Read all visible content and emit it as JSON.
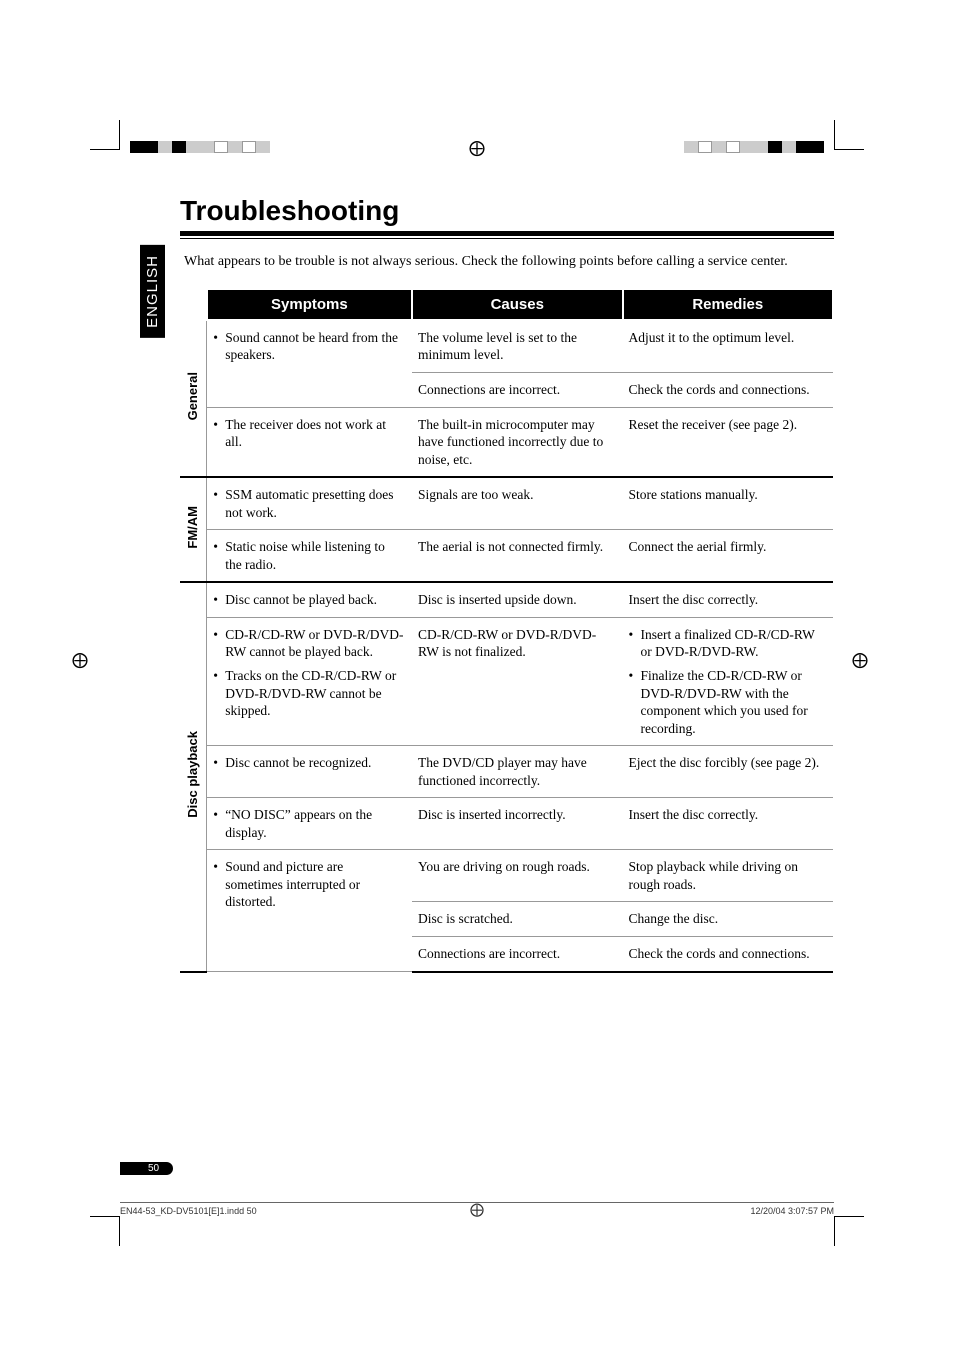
{
  "language_tab": "ENGLISH",
  "title": "Troubleshooting",
  "intro": "What appears to be trouble is not always serious. Check the following points before calling a service center.",
  "headers": {
    "symptoms": "Symptoms",
    "causes": "Causes",
    "remedies": "Remedies"
  },
  "groups": [
    {
      "name": "General",
      "rows": [
        {
          "symptom_bullets": [
            "Sound cannot be heard from the speakers."
          ],
          "cause": "The volume level is set to the minimum level.",
          "remedy": "Adjust it to the optimum level.",
          "sym_rowspan": 2
        },
        {
          "cause": "Connections are incorrect.",
          "remedy": "Check the cords and connections."
        },
        {
          "symptom_bullets": [
            "The receiver does not work at all."
          ],
          "cause": "The built-in microcomputer may have functioned incorrectly due to noise, etc.",
          "remedy": "Reset the receiver (see page 2)."
        }
      ]
    },
    {
      "name": "FM/AM",
      "rows": [
        {
          "symptom_bullets": [
            "SSM automatic presetting does not work."
          ],
          "cause": "Signals are too weak.",
          "remedy": "Store stations manually."
        },
        {
          "symptom_bullets": [
            "Static noise while listening to the radio."
          ],
          "cause": "The aerial is not connected firmly.",
          "remedy": "Connect the aerial firmly."
        }
      ]
    },
    {
      "name": "Disc playback",
      "rows": [
        {
          "symptom_bullets": [
            "Disc cannot be played back."
          ],
          "cause": "Disc is inserted upside down.",
          "remedy": "Insert the disc correctly."
        },
        {
          "symptom_bullets": [
            "CD-R/CD-RW or DVD-R/DVD-RW cannot be played back.",
            "Tracks on the CD-R/CD-RW or DVD-R/DVD-RW cannot be skipped."
          ],
          "cause": "CD-R/CD-RW or DVD-R/DVD-RW is not finalized.",
          "remedy_bullets": [
            "Insert a finalized CD-R/CD-RW or DVD-R/DVD-RW.",
            "Finalize the CD-R/CD-RW or DVD-R/DVD-RW with the component which you used for recording."
          ]
        },
        {
          "symptom_bullets": [
            "Disc cannot be recognized."
          ],
          "cause": "The DVD/CD player may have functioned incorrectly.",
          "remedy": "Eject the disc forcibly (see page 2)."
        },
        {
          "symptom_bullets": [
            "“NO DISC” appears on the display."
          ],
          "cause": "Disc is inserted incorrectly.",
          "remedy": "Insert the disc correctly."
        },
        {
          "symptom_bullets": [
            "Sound and picture are sometimes interrupted or distorted."
          ],
          "cause": "You are driving on rough roads.",
          "remedy": "Stop playback while driving on rough roads.",
          "sym_rowspan": 3
        },
        {
          "cause": "Disc is scratched.",
          "remedy": "Change the disc."
        },
        {
          "cause": "Connections are incorrect.",
          "remedy": "Check the cords and connections."
        }
      ]
    }
  ],
  "page_number": "50",
  "footer_left": "EN44-53_KD-DV5101[E]1.indd   50",
  "footer_right": "12/20/04   3:07:57 PM",
  "reg_center_glyph": "⨁",
  "reg_colors_left": [
    "#000000",
    "#000000",
    "#cccccc",
    "#000000",
    "#cccccc",
    "#cccccc",
    "#ffffff",
    "#cccccc",
    "#ffffff",
    "#cccccc"
  ],
  "reg_colors_right": [
    "#cccccc",
    "#ffffff",
    "#cccccc",
    "#ffffff",
    "#cccccc",
    "#cccccc",
    "#000000",
    "#cccccc",
    "#000000",
    "#000000"
  ]
}
